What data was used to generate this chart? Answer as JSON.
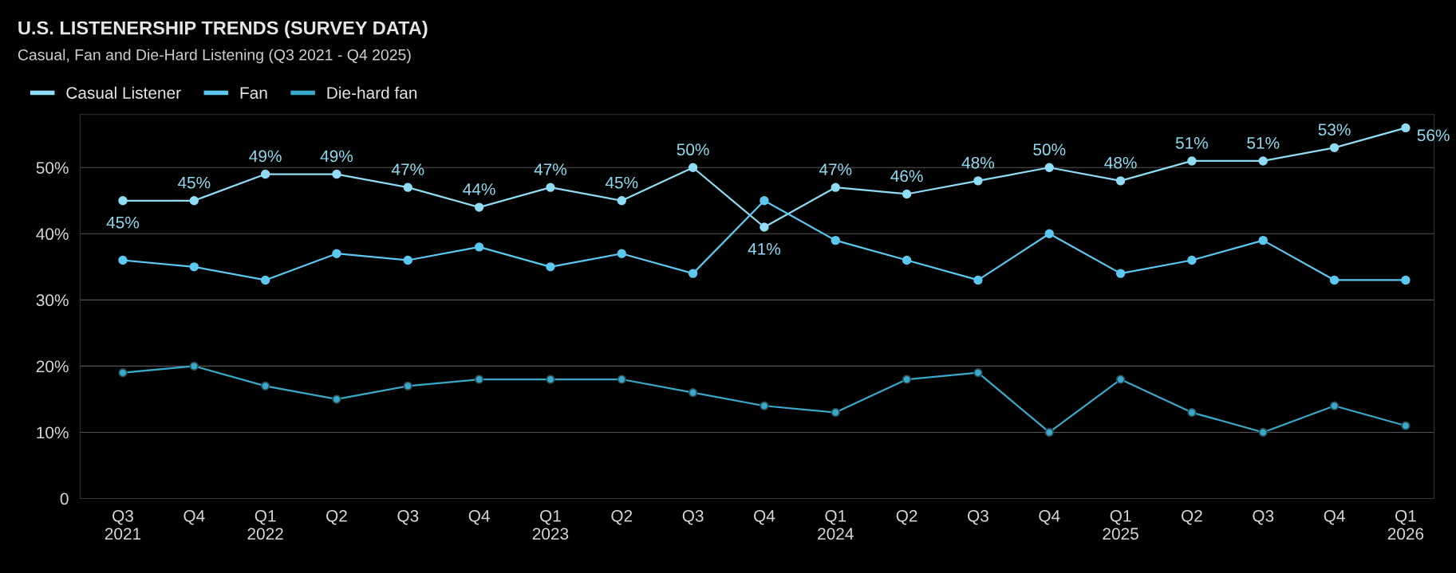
{
  "chart_data": {
    "type": "line",
    "title": "U.S. LISTENERSHIP TRENDS (SURVEY DATA)",
    "subtitle": "Casual, Fan and Die-Hard Listening (Q3 2021 - Q4 2025)",
    "categories": [
      "Q3\n2021",
      "Q4",
      "Q1\n2022",
      "Q2",
      "Q3",
      "Q4",
      "Q1\n2023",
      "Q2",
      "Q3",
      "Q4",
      "Q1\n2024",
      "Q2",
      "Q3",
      "Q4",
      "Q1\n2025",
      "Q2",
      "Q3",
      "Q4",
      "Q1\n2026"
    ],
    "series": [
      {
        "name": "Casual Listener",
        "color": "#8fdcf5",
        "values": [
          45,
          45,
          49,
          49,
          47,
          44,
          47,
          45,
          50,
          41,
          47,
          46,
          48,
          50,
          48,
          51,
          51,
          53,
          56
        ],
        "value_labels": [
          "45%",
          "45%",
          "49%",
          "49%",
          "47%",
          "44%",
          "47%",
          "45%",
          "50%",
          "41%",
          "47%",
          "46%",
          "48%",
          "50%",
          "48%",
          "51%",
          "51%",
          "53%",
          "56%"
        ]
      },
      {
        "name": "Fan",
        "color": "#5cc8f0",
        "values": [
          36,
          35,
          33,
          37,
          36,
          38,
          35,
          37,
          34,
          45,
          39,
          36,
          33,
          40,
          34,
          36,
          39,
          33,
          33
        ]
      },
      {
        "name": "Die-hard fan",
        "color": "#3aa8c8",
        "values": [
          19,
          20,
          17,
          15,
          17,
          18,
          18,
          18,
          16,
          14,
          13,
          18,
          19,
          10,
          18,
          13,
          10,
          14,
          11
        ]
      }
    ],
    "ylim": [
      0,
      58
    ],
    "yticks": [
      {
        "value": 0,
        "label": "0"
      },
      {
        "value": 10,
        "label": "10%"
      },
      {
        "value": 20,
        "label": "20%"
      },
      {
        "value": 30,
        "label": "30%"
      },
      {
        "value": 40,
        "label": "40%"
      },
      {
        "value": 50,
        "label": "50%"
      }
    ],
    "grid": "y",
    "legend": "top left",
    "marker": "circle",
    "line_style": "solid"
  }
}
